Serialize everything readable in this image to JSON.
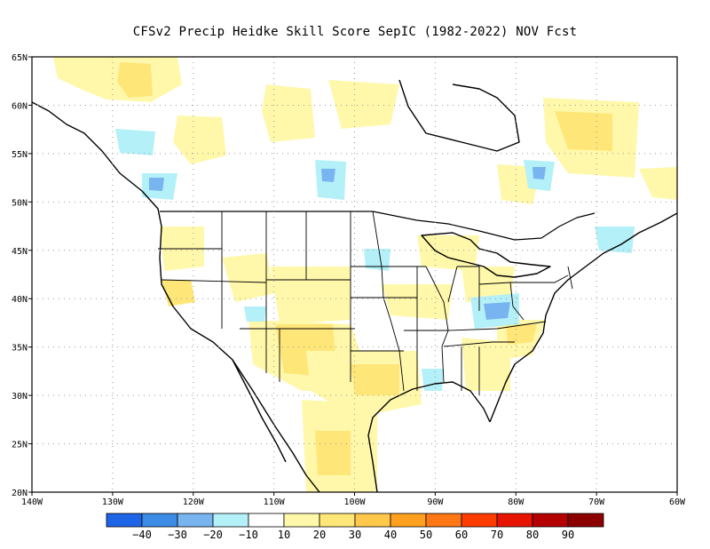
{
  "title": "CFSv2 Precip Heidke Skill Score SepIC (1982-2022) NOV Fcst",
  "map": {
    "lon_range": [
      -140,
      -60
    ],
    "lat_range": [
      20,
      65
    ],
    "lat_labels": [
      "20N",
      "25N",
      "30N",
      "35N",
      "40N",
      "45N",
      "50N",
      "55N",
      "60N",
      "65N"
    ],
    "lon_labels": [
      "140W",
      "130W",
      "120W",
      "110W",
      "100W",
      "90W",
      "80W",
      "70W",
      "60W"
    ],
    "gridlines": "dotted"
  },
  "colorbar": {
    "colors": [
      "#1e64e6",
      "#3c8ce6",
      "#78b4f0",
      "#b4f0f8",
      "#ffffff",
      "#fff8aa",
      "#ffe678",
      "#ffc84a",
      "#ffa01e",
      "#ff7814",
      "#ff3c00",
      "#e61400",
      "#b40000",
      "#8c0000"
    ],
    "labels": [
      "−40",
      "−30",
      "−20",
      "−10",
      "10",
      "20",
      "30",
      "40",
      "50",
      "60",
      "70",
      "80",
      "90"
    ]
  }
}
